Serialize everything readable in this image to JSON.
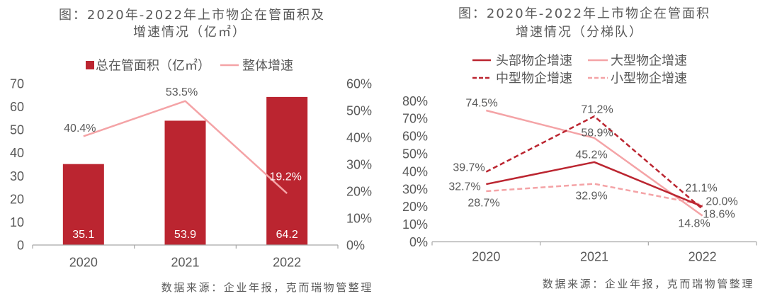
{
  "chart_data": [
    {
      "type": "bar",
      "combo": "bar + line (secondary axis)",
      "title": "图：2020年-2022年上市物企在管面积及增速情况（亿㎡）",
      "title_lines": [
        "图：2020年-2022年上市物企在管面积及",
        "增速情况（亿㎡）"
      ],
      "categories": [
        "2020",
        "2021",
        "2022"
      ],
      "series": [
        {
          "name": "总在管面积（亿㎡）",
          "type": "bar",
          "axis": "left",
          "color": "#bb2530",
          "values": [
            35.1,
            53.9,
            64.2
          ],
          "labels": [
            "35.1",
            "53.9",
            "64.2"
          ]
        },
        {
          "name": "整体增速",
          "type": "line",
          "axis": "right",
          "color": "#f4a3a6",
          "values": [
            40.4,
            53.5,
            19.2
          ],
          "labels": [
            "40.4%",
            "53.5%",
            "19.2%"
          ]
        }
      ],
      "xlabel": "",
      "ylabel": "",
      "y2label": "",
      "ylim": [
        0,
        70
      ],
      "yticks": [
        "0",
        "10",
        "20",
        "30",
        "40",
        "50",
        "60",
        "70"
      ],
      "y2lim": [
        0,
        60
      ],
      "y2ticks": [
        "0%",
        "10%",
        "20%",
        "30%",
        "40%",
        "50%",
        "60%"
      ],
      "grid": false,
      "legend": "top",
      "source": "数据来源：企业年报，克而瑞物管整理"
    },
    {
      "type": "line",
      "title": "图：2020年-2022年上市物企在管面积增速情况（分梯队）",
      "title_lines": [
        "图：2020年-2022年上市物企在管面积",
        "增速情况（分梯队）"
      ],
      "categories": [
        "2020",
        "2021",
        "2022"
      ],
      "series": [
        {
          "name": "头部物企增速",
          "color": "#bb2530",
          "line_style": "solid",
          "values": [
            32.7,
            45.2,
            20.0
          ],
          "labels": [
            "32.7%",
            "45.2%",
            "20.0%"
          ]
        },
        {
          "name": "大型物企增速",
          "color": "#f4a3a6",
          "line_style": "solid",
          "values": [
            74.5,
            58.9,
            14.8
          ],
          "labels": [
            "74.5%",
            "58.9%",
            "14.8%"
          ]
        },
        {
          "name": "中型物企增速",
          "color": "#bb2530",
          "line_style": "dashed",
          "values": [
            39.7,
            71.2,
            18.6
          ],
          "labels": [
            "39.7%",
            "71.2%",
            "18.6%"
          ]
        },
        {
          "name": "小型物企增速",
          "color": "#f4a3a6",
          "line_style": "dashed",
          "values": [
            28.7,
            32.9,
            21.1
          ],
          "labels": [
            "28.7%",
            "32.9%",
            "21.1%"
          ]
        }
      ],
      "xlabel": "",
      "ylabel": "",
      "ylim": [
        0,
        80
      ],
      "yticks": [
        "0%",
        "10%",
        "20%",
        "30%",
        "40%",
        "50%",
        "60%",
        "70%",
        "80%"
      ],
      "grid": false,
      "legend": "top",
      "source": "数据来源：企业年报，克而瑞物管整理"
    }
  ]
}
